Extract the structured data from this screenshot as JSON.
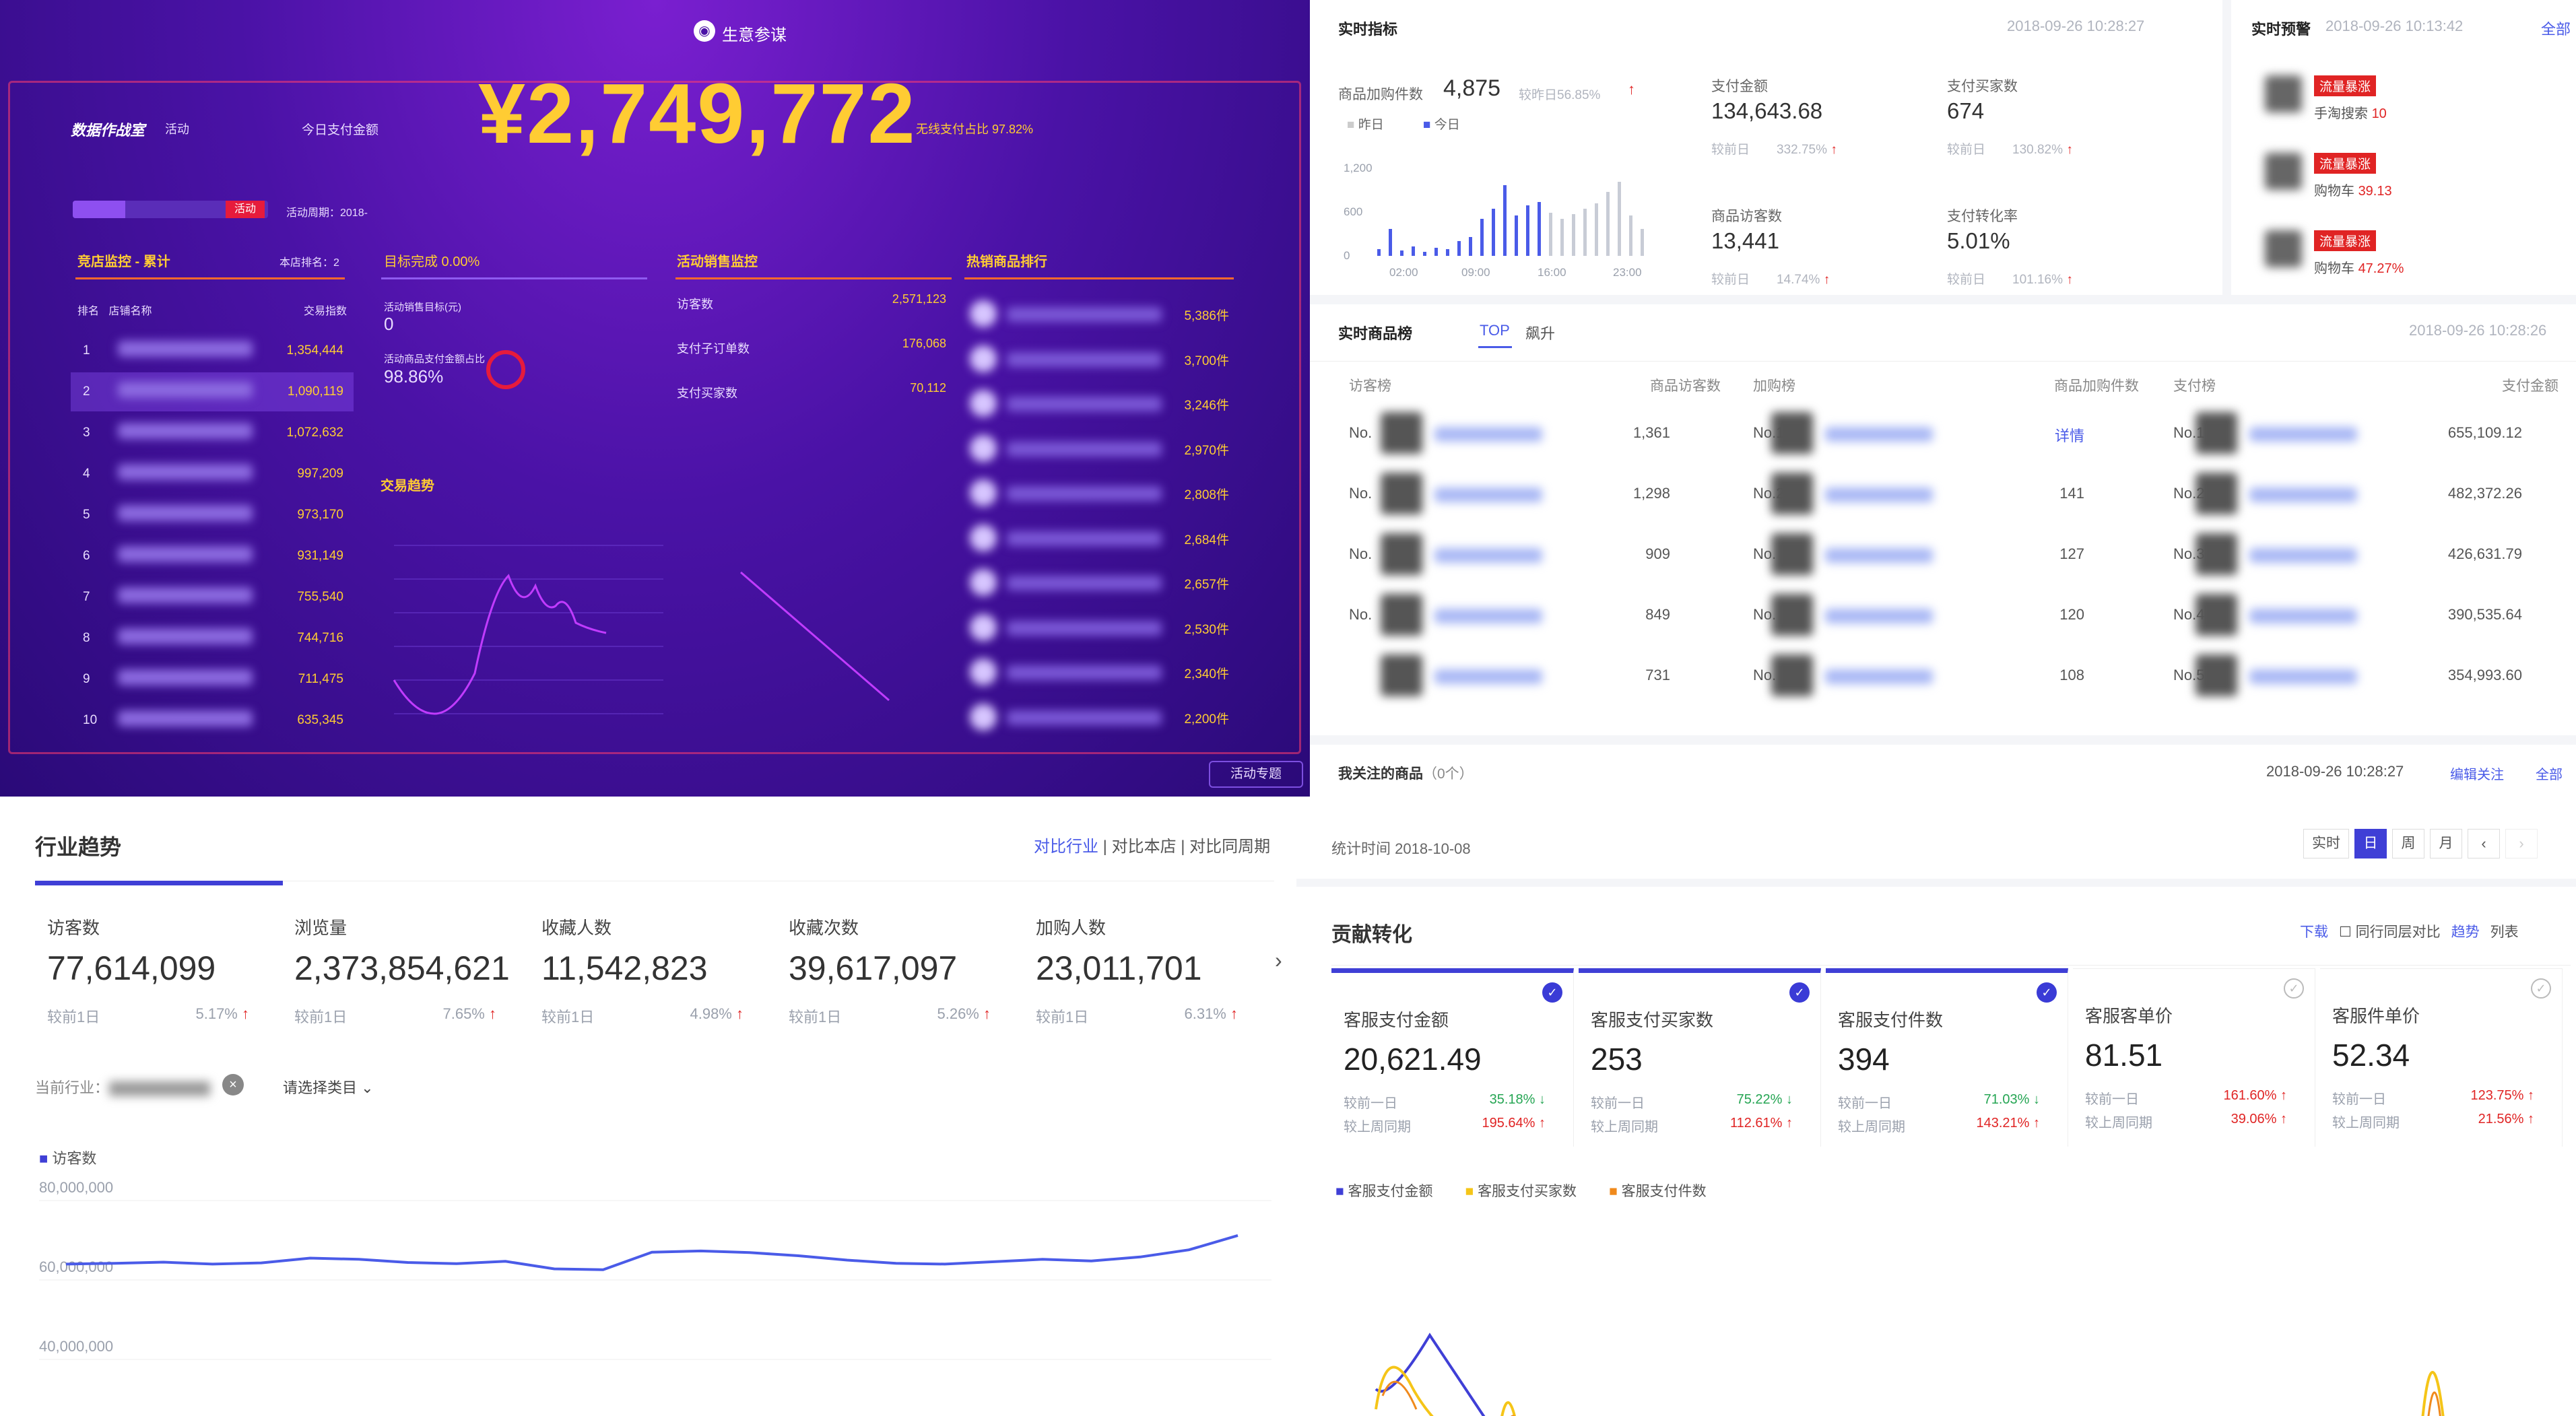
{
  "p1": {
    "logo": "生意参谋",
    "brand": "数据作战室",
    "brand_sub": "活动",
    "today_label": "今日支付金额",
    "today_amount": "¥2,749,772",
    "rate_label": "无线支付占比 97.82%",
    "activity_period": "活动周期：2018-",
    "status_tag": "活动",
    "progress_pct": 0.27,
    "shop_rank_title": "竞店监控 - 累计",
    "shop_rank_sub": "本店排名：2",
    "shop_rank_cols": [
      "排名",
      "店铺名称",
      "交易指数"
    ],
    "shop_rank": [
      {
        "rank": "1",
        "value": "1,354,444"
      },
      {
        "rank": "2",
        "value": "1,090,119"
      },
      {
        "rank": "3",
        "value": "1,072,632"
      },
      {
        "rank": "4",
        "value": "997,209"
      },
      {
        "rank": "5",
        "value": "973,170"
      },
      {
        "rank": "6",
        "value": "931,149"
      },
      {
        "rank": "7",
        "value": "755,540"
      },
      {
        "rank": "8",
        "value": "744,716"
      },
      {
        "rank": "9",
        "value": "711,475"
      },
      {
        "rank": "10",
        "value": "635,345"
      }
    ],
    "target_title": "目标完成 0.00%",
    "target_lines": [
      "活动销售目标(元)",
      "0",
      "活动商品支付金额占比",
      "98.86%"
    ],
    "trend_title": "交易趋势",
    "activity_monitor_title": "活动销售监控",
    "activity_monitor": [
      {
        "label": "访客数",
        "value": "2,571,123"
      },
      {
        "label": "支付子订单数",
        "value": "176,068"
      },
      {
        "label": "支付买家数",
        "value": "70,112"
      }
    ],
    "hot_title": "热销商品排行",
    "hot_items": [
      "5,386件",
      "3,700件",
      "3,246件",
      "2,970件",
      "2,808件",
      "2,684件",
      "2,657件",
      "2,530件",
      "2,340件",
      "2,200件"
    ],
    "footer_btn": "活动专题"
  },
  "p2": {
    "realtime_title": "实时指标",
    "realtime_ts": "2018-09-26 10:28:27",
    "cart_label": "商品加购件数",
    "cart_value": "4,875",
    "cart_cmp": "较昨日56.85%",
    "legend_yesterday": "昨日",
    "legend_today": "今日",
    "chart_ticks": [
      "1,200",
      "600",
      "0"
    ],
    "chart_x": [
      "02:00",
      "09:00",
      "16:00",
      "23:00"
    ],
    "metrics": [
      {
        "label": "支付金额",
        "value": "134,643.68",
        "cmp_label": "较前日",
        "cmp": "332.75%"
      },
      {
        "label": "支付买家数",
        "value": "674",
        "cmp_label": "较前日",
        "cmp": "130.82%"
      },
      {
        "label": "商品访客数",
        "value": "13,441",
        "cmp_label": "较前日",
        "cmp": "14.74%"
      },
      {
        "label": "支付转化率",
        "value": "5.01%",
        "cmp_label": "较前日",
        "cmp": "101.16%"
      }
    ],
    "alert_title": "实时预警",
    "alert_ts": "2018-09-26 10:13:42",
    "alert_all": "全部",
    "alerts": [
      {
        "tag": "流量暴涨",
        "text": "手淘搜索",
        "pct": "10"
      },
      {
        "tag": "流量暴涨",
        "text": "购物车",
        "pct": "39.13"
      },
      {
        "tag": "流量暴涨",
        "text": "购物车",
        "pct": "47.27%"
      }
    ],
    "goods_title": "实时商品榜",
    "goods_tabs": [
      "TOP",
      "飙升"
    ],
    "goods_ts": "2018-09-26 10:28:26",
    "goods_cols": [
      "访客榜",
      "商品访客数",
      "加购榜",
      "商品加购件数",
      "支付榜",
      "支付金额"
    ],
    "goods_rows": [
      {
        "rank": "No.",
        "visitors": "1,361",
        "cart_rank": "No.1",
        "cart": "详情",
        "pay_rank": "No.1",
        "pay": "655,109.12"
      },
      {
        "rank": "No.",
        "visitors": "1,298",
        "cart_rank": "No.2",
        "cart": "141",
        "pay_rank": "No.2",
        "pay": "482,372.26"
      },
      {
        "rank": "No.",
        "visitors": "909",
        "cart_rank": "No.",
        "cart": "127",
        "pay_rank": "No.3",
        "pay": "426,631.79"
      },
      {
        "rank": "No.",
        "visitors": "849",
        "cart_rank": "No.",
        "cart": "120",
        "pay_rank": "No.4",
        "pay": "390,535.64"
      },
      {
        "rank": "",
        "visitors": "731",
        "cart_rank": "No.",
        "cart": "108",
        "pay_rank": "No.5",
        "pay": "354,993.60"
      }
    ],
    "follow_title": "我关注的商品",
    "follow_count": "（0个）",
    "follow_ts": "2018-09-26 10:28:27",
    "follow_edit": "编辑关注",
    "follow_all": "全部"
  },
  "p3": {
    "title": "行业趋势",
    "links": [
      "对比行业",
      "对比本店",
      "对比同周期"
    ],
    "kpis": [
      {
        "name": "访客数",
        "value": "77,614,099",
        "cmp_label": "较前1日",
        "cmp": "5.17%"
      },
      {
        "name": "浏览量",
        "value": "2,373,854,621",
        "cmp_label": "较前1日",
        "cmp": "7.65%"
      },
      {
        "name": "收藏人数",
        "value": "11,542,823",
        "cmp_label": "较前1日",
        "cmp": "4.98%"
      },
      {
        "name": "收藏次数",
        "value": "39,617,097",
        "cmp_label": "较前1日",
        "cmp": "5.26%"
      },
      {
        "name": "加购人数",
        "value": "23,011,701",
        "cmp_label": "较前1日",
        "cmp": "6.31%"
      }
    ],
    "industry_label": "当前行业",
    "category_select": "请选择类目",
    "legend": "访客数",
    "y_ticks": [
      "80,000,000",
      "60,000,000",
      "40,000,000"
    ],
    "series": [
      64000000,
      64200000,
      64500000,
      64000000,
      64300000,
      65500000,
      65200000,
      64400000,
      64100000,
      64700000,
      62800000,
      62600000,
      67000000,
      67300000,
      66900000,
      66100000,
      65000000,
      64200000,
      64000000,
      64600000,
      65200000,
      64800000,
      65800000,
      67600000,
      71200000
    ]
  },
  "p4": {
    "stat_time": "统计时间 2018-10-08",
    "periods": [
      "实时",
      "日",
      "周",
      "月"
    ],
    "title": "贡献转化",
    "actions": [
      "下载",
      "同行同层对比",
      "趋势",
      "列表"
    ],
    "kpis": [
      {
        "name": "客服支付金额",
        "value": "20,621.49",
        "d1": "35.18%",
        "d1dir": "down",
        "d7": "195.64%",
        "d7dir": "up",
        "checked": true
      },
      {
        "name": "客服支付买家数",
        "value": "253",
        "d1": "75.22%",
        "d1dir": "down",
        "d7": "112.61%",
        "d7dir": "up",
        "checked": true
      },
      {
        "name": "客服支付件数",
        "value": "394",
        "d1": "71.03%",
        "d1dir": "down",
        "d7": "143.21%",
        "d7dir": "up",
        "checked": true
      },
      {
        "name": "客服客单价",
        "value": "81.51",
        "d1": "161.60%",
        "d1dir": "up",
        "d7": "39.06%",
        "d7dir": "up",
        "checked": false
      },
      {
        "name": "客服件单价",
        "value": "52.34",
        "d1": "123.75%",
        "d1dir": "up",
        "d7": "21.56%",
        "d7dir": "up",
        "checked": false
      }
    ],
    "cmp_label_1": "较前一日",
    "cmp_label_2": "较上周同期",
    "legend": [
      {
        "name": "客服支付金额",
        "color": "#3f3fd6"
      },
      {
        "name": "客服支付买家数",
        "color": "#f5c518"
      },
      {
        "name": "客服支付件数",
        "color": "#f08a1c"
      }
    ]
  }
}
